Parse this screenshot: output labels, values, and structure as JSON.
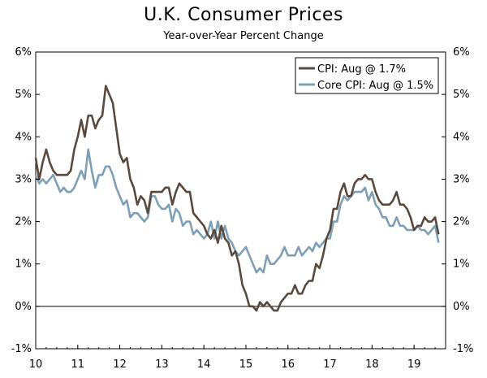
{
  "chart_data": {
    "type": "line",
    "title": "U.K. Consumer Prices",
    "subtitle": "Year-over-Year Percent Change",
    "ylim": [
      -1,
      6
    ],
    "xlim": [
      2010,
      2019.75
    ],
    "y_tick_labels": [
      "-1%",
      "0%",
      "1%",
      "2%",
      "3%",
      "4%",
      "5%",
      "6%"
    ],
    "y_tick_values": [
      -1,
      0,
      1,
      2,
      3,
      4,
      5,
      6
    ],
    "x_tick_labels": [
      "10",
      "11",
      "12",
      "13",
      "14",
      "15",
      "16",
      "17",
      "18",
      "19"
    ],
    "x_tick_values": [
      2010,
      2011,
      2012,
      2013,
      2014,
      2015,
      2016,
      2017,
      2018,
      2019
    ],
    "zero_line": 0,
    "legend_position": "top-right",
    "series": [
      {
        "name": "CPI: Aug @ 1.7%",
        "color": "#5a4a3e",
        "start": 2010,
        "step_months": 1,
        "values": [
          3.5,
          3.0,
          3.4,
          3.7,
          3.4,
          3.2,
          3.1,
          3.1,
          3.1,
          3.1,
          3.2,
          3.7,
          4.0,
          4.4,
          4.0,
          4.5,
          4.5,
          4.2,
          4.4,
          4.5,
          5.2,
          5.0,
          4.8,
          4.2,
          3.6,
          3.4,
          3.5,
          3.0,
          2.8,
          2.4,
          2.6,
          2.5,
          2.2,
          2.7,
          2.7,
          2.7,
          2.7,
          2.8,
          2.8,
          2.4,
          2.7,
          2.9,
          2.8,
          2.7,
          2.7,
          2.2,
          2.1,
          2.0,
          1.9,
          1.7,
          1.6,
          1.8,
          1.5,
          1.9,
          1.6,
          1.5,
          1.2,
          1.3,
          1.0,
          0.5,
          0.3,
          0.0,
          0.0,
          -0.1,
          0.1,
          0.0,
          0.1,
          0.0,
          -0.1,
          -0.1,
          0.1,
          0.2,
          0.3,
          0.3,
          0.5,
          0.3,
          0.3,
          0.5,
          0.6,
          0.6,
          1.0,
          0.9,
          1.2,
          1.6,
          1.8,
          2.3,
          2.3,
          2.7,
          2.9,
          2.6,
          2.6,
          2.9,
          3.0,
          3.0,
          3.1,
          3.0,
          3.0,
          2.7,
          2.5,
          2.4,
          2.4,
          2.4,
          2.5,
          2.7,
          2.4,
          2.4,
          2.3,
          2.1,
          1.8,
          1.9,
          1.9,
          2.1,
          2.0,
          2.0,
          2.1,
          1.7
        ]
      },
      {
        "name": "Core CPI: Aug @ 1.5%",
        "color": "#7f9fb4",
        "start": 2010,
        "step_months": 1,
        "values": [
          3.1,
          2.9,
          3.0,
          2.9,
          3.0,
          3.1,
          2.9,
          2.7,
          2.8,
          2.7,
          2.7,
          2.8,
          3.0,
          3.2,
          3.0,
          3.7,
          3.2,
          2.8,
          3.1,
          3.1,
          3.3,
          3.3,
          3.1,
          2.8,
          2.6,
          2.4,
          2.5,
          2.1,
          2.2,
          2.2,
          2.1,
          2.0,
          2.1,
          2.6,
          2.6,
          2.4,
          2.3,
          2.3,
          2.4,
          2.0,
          2.3,
          2.2,
          1.9,
          2.0,
          2.0,
          1.7,
          1.8,
          1.7,
          1.6,
          1.7,
          2.0,
          1.6,
          2.0,
          1.6,
          1.9,
          1.6,
          1.5,
          1.3,
          1.2,
          1.3,
          1.4,
          1.2,
          1.0,
          0.8,
          0.9,
          0.8,
          1.2,
          1.0,
          1.0,
          1.1,
          1.2,
          1.4,
          1.2,
          1.2,
          1.2,
          1.4,
          1.2,
          1.3,
          1.4,
          1.3,
          1.5,
          1.4,
          1.5,
          1.6,
          1.6,
          2.0,
          2.0,
          2.4,
          2.6,
          2.5,
          2.6,
          2.7,
          2.7,
          2.7,
          2.8,
          2.5,
          2.7,
          2.4,
          2.3,
          2.1,
          2.1,
          1.9,
          1.9,
          2.1,
          1.9,
          1.9,
          1.8,
          1.8,
          1.8,
          1.9,
          1.8,
          1.8,
          1.7,
          1.8,
          1.9,
          1.5
        ]
      }
    ]
  }
}
